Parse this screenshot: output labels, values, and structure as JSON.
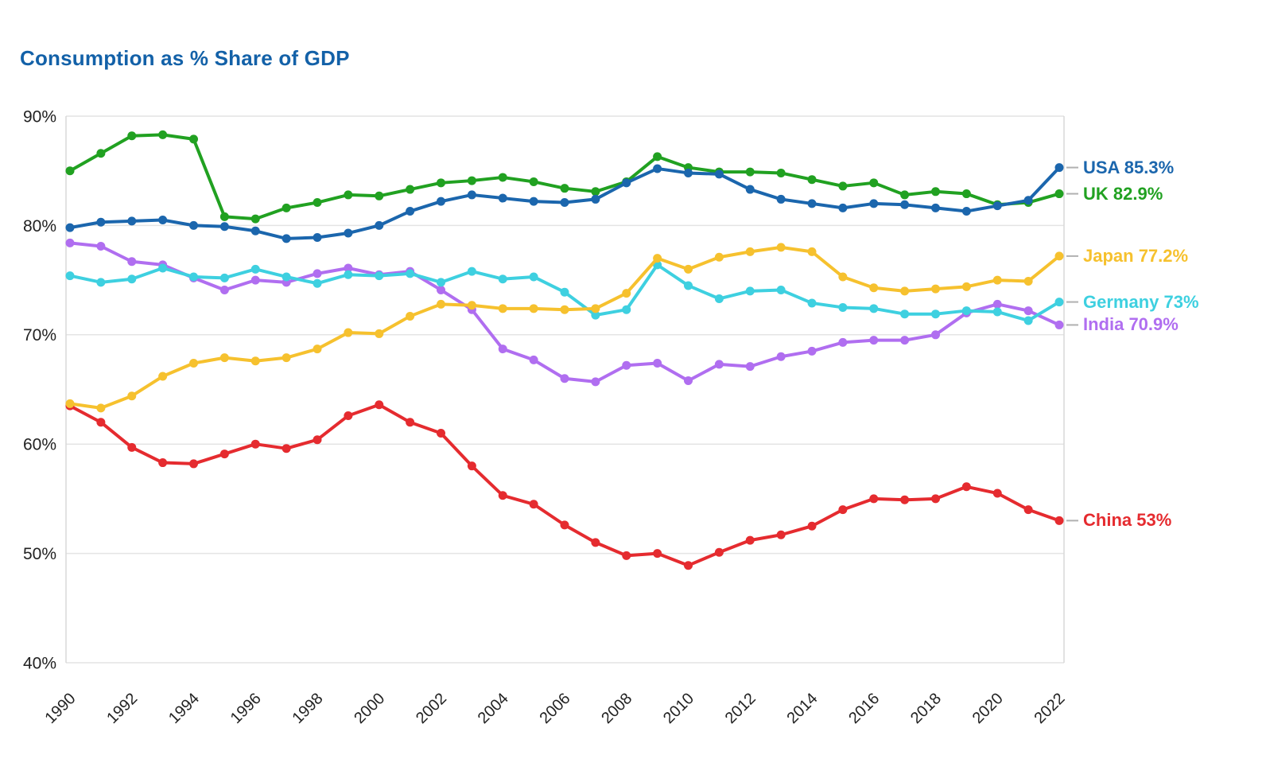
{
  "chart_data": {
    "type": "line",
    "title": "Consumption as % Share of GDP",
    "xlabel": "",
    "ylabel": "",
    "ylim": [
      40,
      90
    ],
    "y_ticks": [
      40,
      50,
      60,
      70,
      80,
      90
    ],
    "y_tick_labels": [
      "40%",
      "50%",
      "60%",
      "70%",
      "80%",
      "90%"
    ],
    "x": [
      1990,
      1991,
      1992,
      1993,
      1994,
      1995,
      1996,
      1997,
      1998,
      1999,
      2000,
      2001,
      2002,
      2003,
      2004,
      2005,
      2006,
      2007,
      2008,
      2009,
      2010,
      2011,
      2012,
      2013,
      2014,
      2015,
      2016,
      2017,
      2018,
      2019,
      2020,
      2021,
      2022
    ],
    "x_tick_labels": [
      "1990",
      "1992",
      "1994",
      "1996",
      "1998",
      "2000",
      "2002",
      "2004",
      "2006",
      "2008",
      "2010",
      "2012",
      "2014",
      "2016",
      "2018",
      "2020",
      "2022"
    ],
    "grid": "horizontal",
    "legend_position": "right-end-labels",
    "marker": "circle",
    "series": [
      {
        "name": "USA",
        "color": "#1b66ad",
        "end_label": "USA 85.3%",
        "values": [
          79.8,
          80.3,
          80.4,
          80.5,
          80.0,
          79.9,
          79.5,
          78.8,
          78.9,
          79.3,
          80.0,
          81.3,
          82.2,
          82.8,
          82.5,
          82.2,
          82.1,
          82.4,
          83.9,
          85.2,
          84.8,
          84.7,
          83.3,
          82.4,
          82.0,
          81.6,
          82.0,
          81.9,
          81.6,
          81.3,
          81.8,
          82.3,
          85.3
        ]
      },
      {
        "name": "UK",
        "color": "#21a121",
        "end_label": "UK 82.9%",
        "values": [
          85.0,
          86.6,
          88.2,
          88.3,
          87.9,
          80.8,
          80.6,
          81.6,
          82.1,
          82.8,
          82.7,
          83.3,
          83.9,
          84.1,
          84.4,
          84.0,
          83.4,
          83.1,
          84.0,
          86.3,
          85.3,
          84.9,
          84.9,
          84.8,
          84.2,
          83.6,
          83.9,
          82.8,
          83.1,
          82.9,
          81.9,
          82.1,
          82.9
        ]
      },
      {
        "name": "Japan",
        "color": "#f6c12e",
        "end_label": "Japan 77.2%",
        "values": [
          63.7,
          63.3,
          64.4,
          66.2,
          67.4,
          67.9,
          67.6,
          67.9,
          68.7,
          70.2,
          70.1,
          71.7,
          72.8,
          72.7,
          72.4,
          72.4,
          72.3,
          72.4,
          73.8,
          77.0,
          76.0,
          77.1,
          77.6,
          78.0,
          77.6,
          75.3,
          74.3,
          74.0,
          74.2,
          74.4,
          75.0,
          74.9,
          77.2
        ]
      },
      {
        "name": "Germany",
        "color": "#3ed0e0",
        "end_label": "Germany 73%",
        "values": [
          75.4,
          74.8,
          75.1,
          76.1,
          75.3,
          75.2,
          76.0,
          75.3,
          74.7,
          75.5,
          75.4,
          75.6,
          74.8,
          75.8,
          75.1,
          75.3,
          73.9,
          71.8,
          72.3,
          76.4,
          74.5,
          73.3,
          74.0,
          74.1,
          72.9,
          72.5,
          72.4,
          71.9,
          71.9,
          72.2,
          72.1,
          71.3,
          73.0
        ]
      },
      {
        "name": "India",
        "color": "#b06ef0",
        "end_label": "India 70.9%",
        "values": [
          78.4,
          78.1,
          76.7,
          76.4,
          75.2,
          74.1,
          75.0,
          74.8,
          75.6,
          76.1,
          75.5,
          75.8,
          74.1,
          72.3,
          68.7,
          67.7,
          66.0,
          65.7,
          67.2,
          67.4,
          65.8,
          67.3,
          67.1,
          68.0,
          68.5,
          69.3,
          69.5,
          69.5,
          70.0,
          72.0,
          72.8,
          72.2,
          70.9
        ]
      },
      {
        "name": "China",
        "color": "#e52b2f",
        "end_label": "China 53%",
        "values": [
          63.5,
          62.0,
          59.7,
          58.3,
          58.2,
          59.1,
          60.0,
          59.6,
          60.4,
          62.6,
          63.6,
          62.0,
          61.0,
          58.0,
          55.3,
          54.5,
          52.6,
          51.0,
          49.8,
          50.0,
          48.9,
          50.1,
          51.2,
          51.7,
          52.5,
          54.0,
          55.0,
          54.9,
          55.0,
          56.1,
          55.5,
          54.0,
          53.0
        ]
      }
    ],
    "style": {
      "grid_color": "#e4e4e4",
      "axis_line_color": "#d8d8d8",
      "tick_label_color": "#222222",
      "connector_color": "#b0b0b0",
      "title_color": "#1361a8"
    }
  }
}
